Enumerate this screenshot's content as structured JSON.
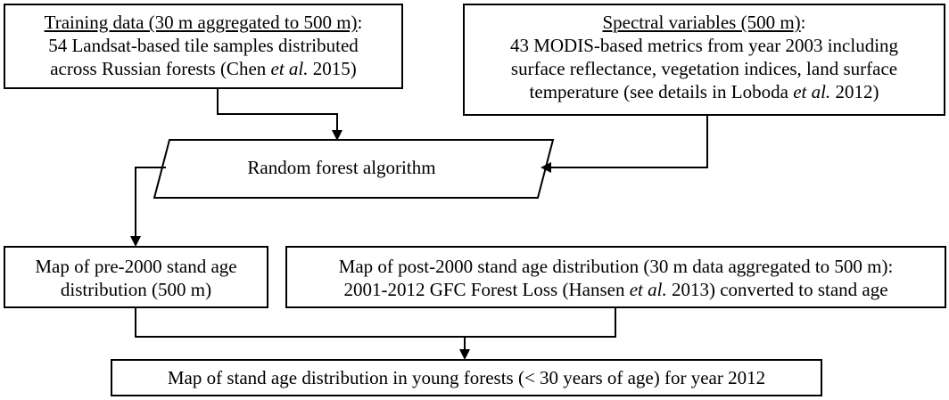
{
  "training": {
    "title": "Training data (30 m aggregated to 500 m)",
    "title_suffix": ":",
    "line1": "54 Landsat-based tile samples distributed",
    "line2_pre": "across Russian forests (Chen ",
    "line2_etal": "et al.",
    "line2_post": " 2015)"
  },
  "spectral": {
    "title": "Spectral variables (500 m)",
    "title_suffix": ":",
    "line1": "43 MODIS-based metrics from year 2003 including",
    "line2": "surface reflectance, vegetation indices, land surface",
    "line3_pre": "temperature (see details in Loboda ",
    "line3_etal": "et al.",
    "line3_post": " 2012)"
  },
  "algorithm": {
    "label": "Random forest algorithm"
  },
  "pre2000": {
    "line1": "Map of pre-2000 stand age",
    "line2": "distribution (500 m)"
  },
  "post2000": {
    "line1": "Map of post-2000 stand age distribution (30 m data aggregated to 500 m):",
    "line2_pre": "2001-2012 GFC Forest Loss (Hansen ",
    "line2_etal": "et al.",
    "line2_post": " 2013) converted to stand age"
  },
  "final": {
    "label": "Map of stand age distribution in young forests (< 30 years of age) for year 2012"
  }
}
